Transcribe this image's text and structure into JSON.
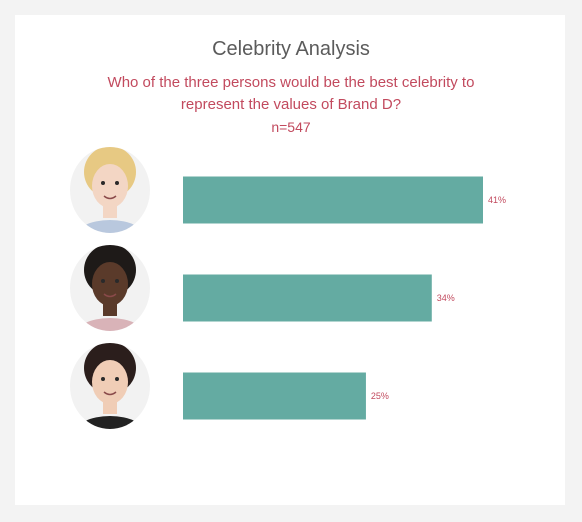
{
  "title": "Celebrity Analysis",
  "subtitle": "Who of the three persons would be the best celebrity to represent the values of Brand D?",
  "sample_size": "n=547",
  "colors": {
    "bar": "#64aba2",
    "label": "#c24a5e",
    "title": "#5b5b5b"
  },
  "chart_data": {
    "type": "bar",
    "orientation": "horizontal",
    "categories": [
      "blonde-woman",
      "man",
      "dark-haired-woman"
    ],
    "values": [
      41,
      34,
      25
    ],
    "value_labels": [
      "41%",
      "34%",
      "25%"
    ],
    "xlim": [
      0,
      100
    ],
    "axes_visible": false,
    "grid": false
  },
  "avatars": [
    {
      "icon": "blonde-woman-photo",
      "skin": "#f3d6c4",
      "hair": "#e7c983",
      "shirt": "#b9c8de"
    },
    {
      "icon": "man-photo",
      "skin": "#5a3a2a",
      "hair": "#1e1a18",
      "shirt": "#d9b3b8"
    },
    {
      "icon": "dark-haired-woman-photo",
      "skin": "#f0cdb6",
      "hair": "#2b1e1c",
      "shirt": "#222222"
    }
  ]
}
